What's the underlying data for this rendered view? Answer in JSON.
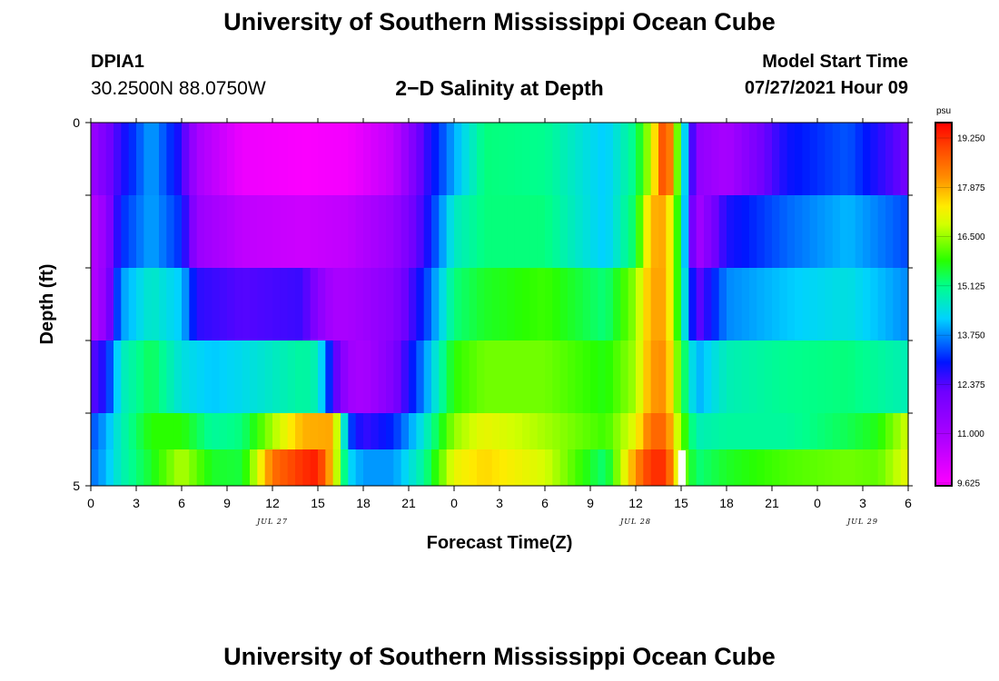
{
  "header": {
    "title": "University of Southern Mississippi Ocean Cube",
    "station_id": "DPIA1",
    "station_coords": "30.2500N  88.0750W",
    "plot_title": "2−D Salinity at Depth",
    "start_label": "Model Start Time",
    "start_value": "07/27/2021 Hour 09"
  },
  "footer": {
    "title": "University of Southern Mississippi Ocean Cube"
  },
  "chart_data": {
    "type": "heatmap",
    "title": "2−D Salinity at Depth",
    "xlabel": "Forecast Time(Z)",
    "ylabel": "Depth (ft)",
    "x_ticks": [
      "0",
      "3",
      "6",
      "9",
      "12",
      "15",
      "18",
      "21",
      "0",
      "3",
      "6",
      "9",
      "12",
      "15",
      "18",
      "21",
      "0",
      "3",
      "6"
    ],
    "x_range_hours": [
      0,
      54
    ],
    "date_labels": [
      {
        "label": "JUL 27",
        "hour": 12
      },
      {
        "label": "JUL 28",
        "hour": 36
      },
      {
        "label": "JUL 29",
        "hour": 51
      }
    ],
    "y_ticks": [
      "0",
      "5"
    ],
    "ylim": [
      0,
      5
    ],
    "colorbar": {
      "unit": "psu",
      "min": 9.625,
      "max": 19.25,
      "tick_labels": [
        "19.250",
        "17.875",
        "16.500",
        "15.125",
        "13.750",
        "12.375",
        "11.000",
        "9.625"
      ]
    },
    "depth_rows": [
      0.5,
      1.5,
      2.5,
      3.5,
      4.5
    ],
    "value_series": [
      {
        "depth_ft": 0,
        "hours": [
          0,
          2,
          4,
          6,
          7,
          10,
          14,
          17,
          20,
          22,
          24,
          26,
          30,
          34,
          36,
          37,
          38,
          39,
          40,
          42,
          46,
          50,
          54
        ],
        "values": [
          11.2,
          12.6,
          13.8,
          12.6,
          11.0,
          9.9,
          9.7,
          9.8,
          10.6,
          12.4,
          13.8,
          15.0,
          14.9,
          14.0,
          15.0,
          16.5,
          19.0,
          15.0,
          11.5,
          11.0,
          12.8,
          13.3,
          12.0
        ]
      },
      {
        "depth_ft": 1,
        "hours": [
          0,
          1,
          2,
          4,
          6,
          7,
          10,
          14,
          17,
          20,
          22,
          24,
          26,
          30,
          34,
          36,
          37,
          38,
          39,
          40,
          42,
          46,
          50,
          54
        ],
        "values": [
          10.7,
          11.4,
          13.0,
          13.8,
          13.0,
          11.3,
          10.6,
          10.4,
          10.6,
          11.3,
          12.5,
          14.5,
          15.0,
          15.0,
          14.0,
          15.2,
          17.5,
          17.6,
          15.0,
          11.0,
          12.7,
          13.4,
          13.9,
          13.2
        ]
      },
      {
        "depth_ft": 2,
        "hours": [
          0,
          1,
          2,
          4,
          6,
          7,
          10,
          14,
          15,
          16,
          17,
          20,
          22,
          24,
          26,
          30,
          34,
          36,
          37,
          38,
          39,
          40,
          42,
          46,
          50,
          54
        ],
        "values": [
          10.7,
          11.5,
          13.7,
          14.5,
          14.0,
          12.6,
          12.3,
          12.5,
          11.6,
          11.0,
          11.0,
          11.6,
          13.0,
          15.0,
          15.4,
          15.7,
          15.0,
          16.2,
          17.6,
          17.6,
          15.0,
          12.1,
          13.6,
          14.0,
          14.3,
          13.6
        ]
      },
      {
        "depth_ft": 3,
        "hours": [
          0,
          1,
          2,
          4,
          6,
          8,
          10,
          14,
          15,
          16,
          17,
          18,
          20,
          22,
          24,
          26,
          30,
          34,
          36,
          37,
          38,
          39,
          40,
          42,
          46,
          50,
          54
        ],
        "values": [
          12.2,
          12.8,
          14.5,
          15.2,
          14.3,
          14.0,
          14.2,
          14.8,
          14.6,
          12.5,
          11.2,
          11.0,
          11.8,
          13.6,
          15.6,
          16.0,
          16.0,
          15.5,
          16.3,
          17.7,
          17.8,
          15.5,
          13.8,
          14.6,
          14.9,
          15.0,
          14.6
        ]
      },
      {
        "depth_ft": 4,
        "hours": [
          0,
          1,
          2,
          4,
          6,
          8,
          10,
          12,
          14,
          16,
          17,
          18,
          20,
          22,
          24,
          26,
          30,
          34,
          36,
          37,
          38,
          39,
          40,
          42,
          46,
          50,
          52,
          54
        ],
        "values": [
          13.2,
          13.8,
          14.6,
          15.6,
          15.6,
          14.8,
          15.0,
          16.3,
          17.5,
          17.6,
          13.3,
          12.5,
          13.0,
          14.4,
          16.2,
          16.8,
          16.3,
          15.7,
          16.8,
          18.2,
          18.2,
          16.0,
          14.6,
          14.8,
          14.8,
          15.2,
          15.5,
          16.6
        ]
      },
      {
        "depth_ft": 5,
        "hours": [
          0,
          1,
          2,
          4,
          6,
          8,
          10,
          11,
          12,
          14,
          15,
          16,
          17,
          18,
          20,
          22,
          24,
          26,
          30,
          34,
          36,
          37,
          38,
          39,
          40,
          42,
          46,
          50,
          52,
          54
        ],
        "values": [
          13.4,
          13.9,
          14.6,
          15.4,
          16.4,
          15.4,
          15.3,
          16.6,
          18.1,
          18.8,
          19.0,
          17.2,
          14.2,
          13.7,
          13.7,
          14.8,
          16.8,
          17.2,
          16.6,
          15.0,
          17.8,
          18.8,
          18.8,
          16.2,
          15.0,
          15.4,
          15.8,
          16.0,
          15.9,
          16.8
        ]
      }
    ],
    "missing_cell": {
      "hour_start": 38.8,
      "hour_end": 39.3,
      "depth_start": 4.5,
      "depth_end": 5.0
    }
  }
}
